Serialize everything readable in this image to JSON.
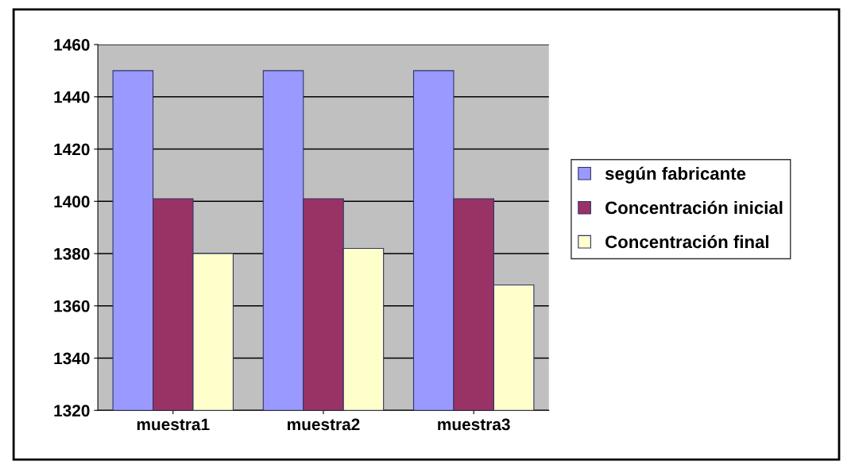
{
  "chart_data": {
    "type": "bar",
    "categories": [
      "muestra1",
      "muestra2",
      "muestra3"
    ],
    "series": [
      {
        "name": "según fabricante",
        "color": "#9999ff",
        "values": [
          1450,
          1450,
          1450
        ]
      },
      {
        "name": "Concentración inicial",
        "color": "#993366",
        "values": [
          1401,
          1401,
          1401
        ]
      },
      {
        "name": "Concentración final",
        "color": "#ffffcc",
        "values": [
          1380,
          1382,
          1368
        ]
      }
    ],
    "ylim": [
      1320,
      1460
    ],
    "yticks": [
      1320,
      1340,
      1360,
      1380,
      1400,
      1420,
      1440,
      1460
    ],
    "grid": "y",
    "legend": "right"
  }
}
